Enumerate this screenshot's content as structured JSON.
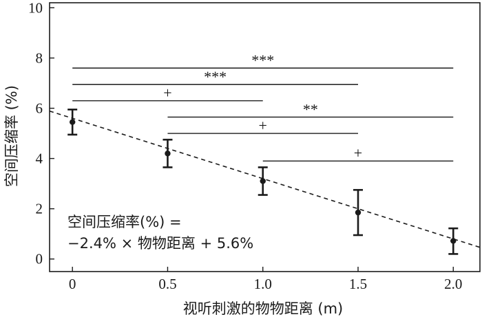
{
  "chart_data": {
    "type": "scatter",
    "xlabel": "视听刺激的物物距离 (m)",
    "ylabel": "空间压缩率 (%)",
    "xlim": [
      -0.12,
      2.14
    ],
    "ylim": [
      -0.5,
      10.2
    ],
    "x_ticks": [
      0,
      0.5,
      1.0,
      1.5,
      2.0
    ],
    "x_tick_labels": [
      "0",
      "0.5",
      "1.0",
      "1.5",
      "2.0"
    ],
    "y_ticks": [
      0,
      2,
      4,
      6,
      8,
      10
    ],
    "y_tick_labels": [
      "0",
      "2",
      "4",
      "6",
      "8",
      "10"
    ],
    "points": [
      {
        "x": 0.0,
        "y": 5.45,
        "err_low": 4.95,
        "err_high": 5.95
      },
      {
        "x": 0.5,
        "y": 4.2,
        "err_low": 3.65,
        "err_high": 4.75
      },
      {
        "x": 1.0,
        "y": 3.1,
        "err_low": 2.55,
        "err_high": 3.65
      },
      {
        "x": 1.5,
        "y": 1.85,
        "err_low": 0.95,
        "err_high": 2.75
      },
      {
        "x": 2.0,
        "y": 0.72,
        "err_low": 0.2,
        "err_high": 1.22
      }
    ],
    "fit_line": {
      "slope": -2.4,
      "intercept": 5.6,
      "style": "dashed"
    },
    "equation": [
      "空间压缩率(%) =",
      "−2.4% × 物物距离 + 5.6%"
    ],
    "significance_bars": [
      {
        "x1": 0.0,
        "x2": 2.0,
        "y": 7.6,
        "label": "***"
      },
      {
        "x1": 0.0,
        "x2": 1.5,
        "y": 6.95,
        "label": "***"
      },
      {
        "x1": 0.0,
        "x2": 1.0,
        "y": 6.3,
        "label": "+"
      },
      {
        "x1": 0.5,
        "x2": 2.0,
        "y": 5.65,
        "label": "**"
      },
      {
        "x1": 0.5,
        "x2": 1.5,
        "y": 5.0,
        "label": "+"
      },
      {
        "x1": 1.0,
        "x2": 2.0,
        "y": 3.9,
        "label": "+"
      }
    ],
    "grid": false,
    "legend": false
  }
}
